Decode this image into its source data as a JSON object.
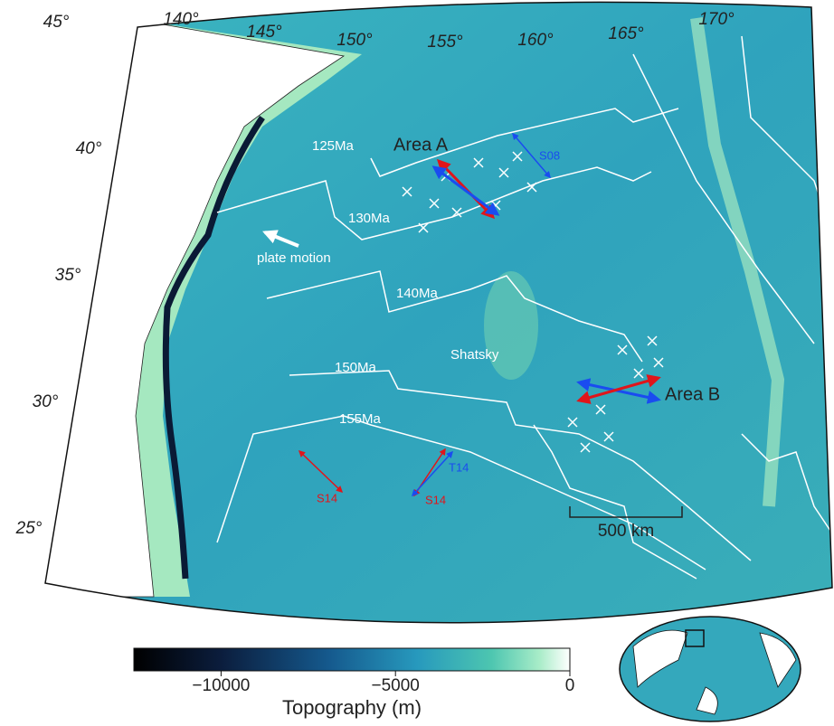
{
  "map": {
    "lon_labels": [
      "140°",
      "145°",
      "150°",
      "155°",
      "160°",
      "165°",
      "170°"
    ],
    "lat_labels": [
      "45°",
      "40°",
      "35°",
      "30°",
      "25°"
    ],
    "isochrons": [
      "125Ma",
      "130Ma",
      "140Ma",
      "150Ma",
      "155Ma"
    ],
    "areas": [
      "Area A",
      "Area B"
    ],
    "feature": "Shatsky",
    "plate_motion": "plate motion",
    "studies": [
      "S08",
      "T14",
      "S14",
      "S14"
    ],
    "scale_bar": "500 km"
  },
  "colorbar": {
    "label": "Topography (m)",
    "range": [
      -12500,
      0
    ],
    "ticks": [
      {
        "value": -10000,
        "label": "−10000"
      },
      {
        "value": -5000,
        "label": "−5000"
      },
      0
    ]
  }
}
